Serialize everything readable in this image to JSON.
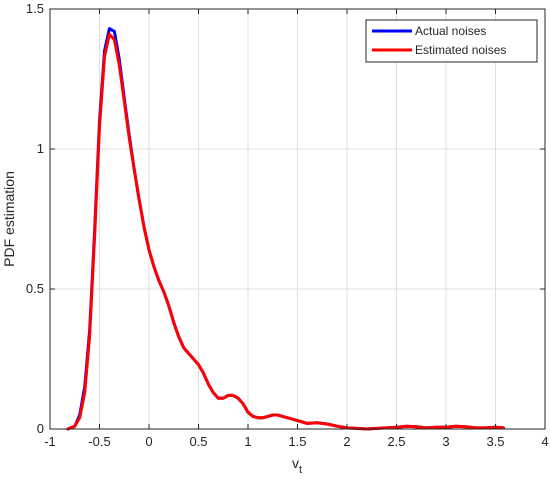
{
  "chart_data": {
    "type": "line",
    "xlabel": "v",
    "xlabel_subscript": "t",
    "ylabel": "PDF estimation",
    "xlim": [
      -1,
      4
    ],
    "ylim": [
      0,
      1.5
    ],
    "x_ticks": [
      "-1",
      "-0.5",
      "0",
      "0.5",
      "1",
      "1.5",
      "2",
      "2.5",
      "3",
      "3.5",
      "4"
    ],
    "y_ticks": [
      "0",
      "0.5",
      "1",
      "1.5"
    ],
    "grid": true,
    "legend_position": "top-right",
    "series": [
      {
        "name": "Actual noises",
        "color": "#0000ff",
        "x": [
          -0.82,
          -0.75,
          -0.7,
          -0.65,
          -0.6,
          -0.55,
          -0.5,
          -0.45,
          -0.4,
          -0.35,
          -0.3,
          -0.25,
          -0.2,
          -0.15,
          -0.1,
          -0.05,
          0,
          0.05,
          0.1,
          0.15,
          0.2,
          0.25,
          0.3,
          0.35,
          0.4,
          0.45,
          0.5,
          0.55,
          0.6,
          0.65,
          0.7,
          0.75,
          0.8,
          0.85,
          0.9,
          0.95,
          1.0,
          1.05,
          1.1,
          1.15,
          1.2,
          1.25,
          1.3,
          1.35,
          1.4,
          1.45,
          1.5,
          1.55,
          1.6,
          1.7,
          1.8,
          1.9,
          2.0,
          2.1,
          2.2,
          2.3,
          2.4,
          2.5,
          2.6,
          2.7,
          2.8,
          2.9,
          3.0,
          3.1,
          3.2,
          3.3,
          3.4,
          3.5,
          3.58
        ],
        "y": [
          0.0,
          0.01,
          0.05,
          0.15,
          0.35,
          0.7,
          1.1,
          1.35,
          1.43,
          1.42,
          1.32,
          1.18,
          1.05,
          0.93,
          0.82,
          0.72,
          0.64,
          0.58,
          0.53,
          0.49,
          0.44,
          0.38,
          0.33,
          0.29,
          0.27,
          0.25,
          0.23,
          0.2,
          0.16,
          0.13,
          0.11,
          0.11,
          0.12,
          0.12,
          0.11,
          0.09,
          0.06,
          0.045,
          0.04,
          0.04,
          0.045,
          0.05,
          0.05,
          0.045,
          0.04,
          0.035,
          0.03,
          0.025,
          0.02,
          0.022,
          0.018,
          0.01,
          0.004,
          0.002,
          0.0,
          0.002,
          0.004,
          0.006,
          0.01,
          0.008,
          0.004,
          0.006,
          0.006,
          0.01,
          0.008,
          0.004,
          0.004,
          0.006,
          0.004
        ]
      },
      {
        "name": "Estimated noises",
        "color": "#ff0000",
        "x": [
          -0.82,
          -0.75,
          -0.7,
          -0.65,
          -0.6,
          -0.55,
          -0.5,
          -0.45,
          -0.4,
          -0.35,
          -0.3,
          -0.25,
          -0.2,
          -0.15,
          -0.1,
          -0.05,
          0,
          0.05,
          0.1,
          0.15,
          0.2,
          0.25,
          0.3,
          0.35,
          0.4,
          0.45,
          0.5,
          0.55,
          0.6,
          0.65,
          0.7,
          0.75,
          0.8,
          0.85,
          0.9,
          0.95,
          1.0,
          1.05,
          1.1,
          1.15,
          1.2,
          1.25,
          1.3,
          1.35,
          1.4,
          1.45,
          1.5,
          1.55,
          1.6,
          1.7,
          1.8,
          1.9,
          2.0,
          2.1,
          2.2,
          2.3,
          2.4,
          2.5,
          2.6,
          2.7,
          2.8,
          2.9,
          3.0,
          3.1,
          3.2,
          3.3,
          3.4,
          3.5,
          3.58
        ],
        "y": [
          0.0,
          0.01,
          0.04,
          0.13,
          0.33,
          0.68,
          1.08,
          1.33,
          1.41,
          1.39,
          1.3,
          1.17,
          1.04,
          0.93,
          0.82,
          0.72,
          0.64,
          0.58,
          0.53,
          0.49,
          0.44,
          0.38,
          0.33,
          0.29,
          0.27,
          0.25,
          0.23,
          0.2,
          0.16,
          0.13,
          0.11,
          0.11,
          0.12,
          0.12,
          0.11,
          0.09,
          0.06,
          0.045,
          0.04,
          0.04,
          0.045,
          0.05,
          0.05,
          0.045,
          0.04,
          0.035,
          0.03,
          0.025,
          0.02,
          0.022,
          0.018,
          0.01,
          0.004,
          0.002,
          0.0,
          0.002,
          0.004,
          0.006,
          0.01,
          0.008,
          0.004,
          0.006,
          0.006,
          0.01,
          0.008,
          0.004,
          0.004,
          0.006,
          0.004
        ]
      }
    ]
  }
}
